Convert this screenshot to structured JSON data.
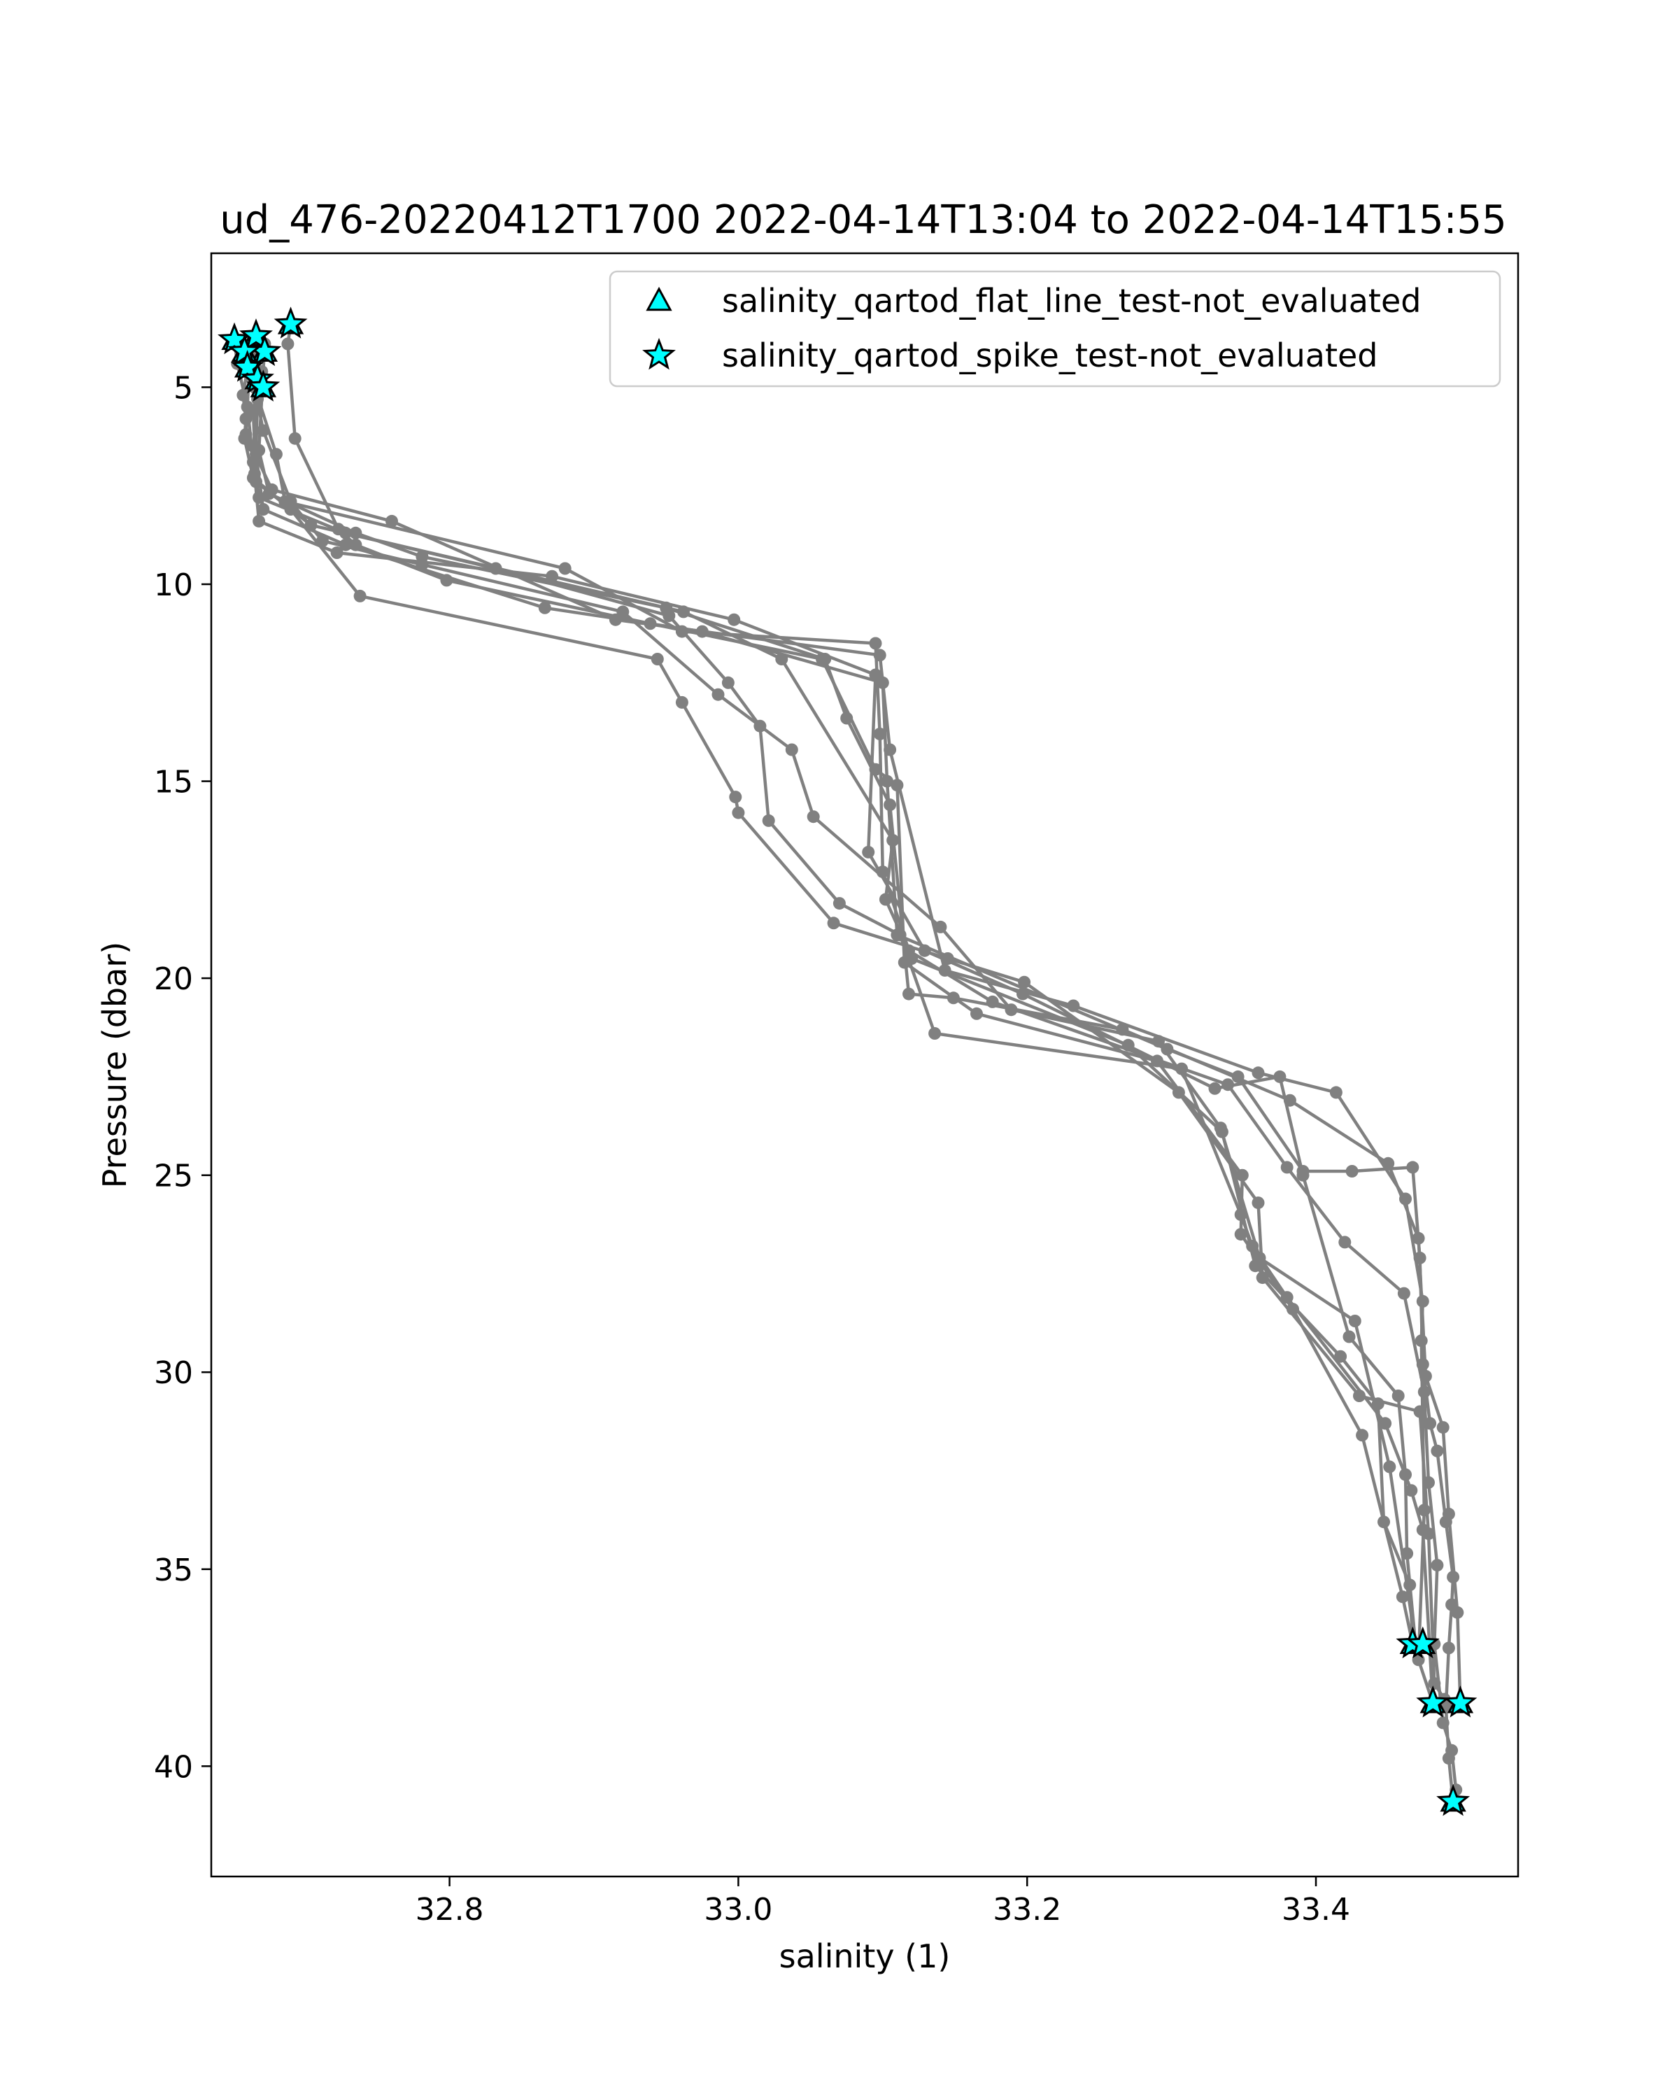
{
  "chart_data": {
    "type": "line",
    "title": "ud_476-20220412T1700 2022-04-14T13:04 to 2022-04-14T15:55",
    "xlabel": "salinity (1)",
    "ylabel": "Pressure (dbar)",
    "xlim": [
      32.635,
      33.54
    ],
    "ylim": [
      42.8,
      1.6
    ],
    "y_inverted": true,
    "grid": false,
    "legend_position": "top-right",
    "xticks": [
      "32.8",
      "33.0",
      "33.2",
      "33.4"
    ],
    "yticks": [
      "5",
      "10",
      "15",
      "20",
      "25",
      "30",
      "35",
      "40"
    ],
    "colors": {
      "profile": "#808080",
      "flag_fill": "#00ffff",
      "flag_edge": "#000000"
    },
    "legend": [
      {
        "label": "salinity_qartod_flat_line_test-not_evaluated",
        "marker": "triangle"
      },
      {
        "label": "salinity_qartod_spike_test-not_evaluated",
        "marker": "star"
      }
    ],
    "profiles": [
      {
        "points": [
          [
            32.69,
            3.4
          ],
          [
            32.688,
            3.9
          ],
          [
            32.693,
            6.3
          ],
          [
            32.723,
            8.6
          ],
          [
            32.735,
            9.0
          ],
          [
            32.798,
            9.9
          ],
          [
            32.939,
            11.0
          ],
          [
            33.058,
            11.9
          ],
          [
            33.095,
            14.7
          ],
          [
            33.11,
            15.1
          ],
          [
            33.115,
            19.6
          ],
          [
            33.165,
            20.9
          ],
          [
            33.29,
            22.1
          ],
          [
            33.349,
            25.0
          ],
          [
            33.348,
            26.5
          ],
          [
            33.384,
            28.4
          ],
          [
            33.432,
            31.6
          ],
          [
            33.46,
            35.7
          ],
          [
            33.467,
            36.9
          ]
        ]
      },
      {
        "points": [
          [
            33.467,
            36.9
          ],
          [
            33.465,
            35.4
          ],
          [
            33.447,
            33.8
          ],
          [
            33.443,
            30.8
          ],
          [
            33.417,
            29.6
          ],
          [
            33.358,
            27.3
          ],
          [
            33.335,
            23.9
          ],
          [
            33.27,
            21.7
          ],
          [
            33.12,
            19.5
          ],
          [
            33.1,
            17.3
          ],
          [
            33.098,
            13.8
          ],
          [
            33.095,
            11.5
          ],
          [
            32.961,
            11.2
          ],
          [
            32.88,
            9.6
          ],
          [
            32.686,
            7.9
          ],
          [
            32.68,
            6.7
          ],
          [
            32.665,
            5.0
          ]
        ]
      },
      {
        "points": [
          [
            32.665,
            5.0
          ],
          [
            32.671,
            6.1
          ],
          [
            32.69,
            7.9
          ],
          [
            32.712,
            8.9
          ],
          [
            32.781,
            9.5
          ],
          [
            32.92,
            10.7
          ],
          [
            32.986,
            12.8
          ],
          [
            33.037,
            14.2
          ],
          [
            33.052,
            15.9
          ],
          [
            33.14,
            18.7
          ],
          [
            33.189,
            20.8
          ],
          [
            33.291,
            21.6
          ],
          [
            33.334,
            23.8
          ],
          [
            33.361,
            27.1
          ],
          [
            33.427,
            28.7
          ],
          [
            33.451,
            32.4
          ],
          [
            33.469,
            36.9
          ]
        ]
      },
      {
        "points": [
          [
            33.469,
            36.9
          ],
          [
            33.463,
            34.6
          ],
          [
            33.462,
            32.6
          ],
          [
            33.457,
            30.6
          ],
          [
            33.423,
            29.1
          ],
          [
            33.391,
            25.0
          ],
          [
            33.375,
            22.5
          ],
          [
            33.33,
            22.8
          ],
          [
            33.197,
            20.4
          ],
          [
            33.129,
            19.3
          ],
          [
            33.09,
            16.8
          ],
          [
            33.095,
            12.3
          ],
          [
            32.997,
            10.9
          ],
          [
            32.871,
            9.8
          ],
          [
            32.722,
            9.2
          ],
          [
            32.668,
            8.4
          ],
          [
            32.665,
            7.2
          ],
          [
            32.664,
            6.5
          ],
          [
            32.67,
            4.6
          ]
        ]
      },
      {
        "points": [
          [
            32.67,
            4.6
          ],
          [
            32.664,
            5.6
          ],
          [
            32.666,
            7.4
          ],
          [
            32.704,
            8.5
          ],
          [
            32.832,
            9.6
          ],
          [
            32.952,
            10.8
          ],
          [
            32.993,
            12.5
          ],
          [
            33.015,
            13.6
          ],
          [
            33.021,
            16.0
          ],
          [
            33.07,
            18.1
          ],
          [
            33.112,
            18.9
          ],
          [
            33.136,
            21.4
          ],
          [
            33.307,
            22.3
          ],
          [
            33.348,
            26.0
          ],
          [
            33.356,
            26.8
          ],
          [
            33.38,
            28.1
          ],
          [
            33.448,
            31.3
          ],
          [
            33.466,
            33.0
          ],
          [
            33.474,
            34.0
          ],
          [
            33.481,
            38.4
          ]
        ]
      },
      {
        "points": [
          [
            33.481,
            38.4
          ],
          [
            33.471,
            37.3
          ],
          [
            33.475,
            33.5
          ],
          [
            33.473,
            29.2
          ],
          [
            33.474,
            28.2
          ],
          [
            33.462,
            25.6
          ],
          [
            33.414,
            22.9
          ],
          [
            33.36,
            22.4
          ],
          [
            33.232,
            20.7
          ],
          [
            33.143,
            19.8
          ],
          [
            33.105,
            14.2
          ],
          [
            33.098,
            11.8
          ],
          [
            32.915,
            10.9
          ],
          [
            32.76,
            8.4
          ],
          [
            32.677,
            7.6
          ],
          [
            32.659,
            6.2
          ],
          [
            32.662,
            4.1
          ]
        ]
      },
      {
        "points": [
          [
            32.662,
            4.1
          ],
          [
            32.657,
            5.2
          ],
          [
            32.659,
            5.8
          ],
          [
            32.658,
            6.3
          ],
          [
            32.664,
            7.3
          ],
          [
            32.69,
            8.1
          ],
          [
            32.738,
            10.3
          ],
          [
            32.944,
            11.9
          ],
          [
            32.961,
            13.0
          ],
          [
            32.998,
            15.4
          ],
          [
            33.0,
            15.8
          ],
          [
            33.066,
            18.6
          ],
          [
            33.145,
            19.5
          ],
          [
            33.198,
            20.1
          ],
          [
            33.305,
            22.9
          ],
          [
            33.36,
            25.7
          ],
          [
            33.363,
            27.6
          ],
          [
            33.43,
            30.6
          ],
          [
            33.472,
            31.0
          ],
          [
            33.478,
            34.1
          ],
          [
            33.482,
            37.9
          ],
          [
            33.489,
            38.3
          ],
          [
            33.5,
            38.4
          ]
        ]
      },
      {
        "points": [
          [
            33.5,
            38.4
          ],
          [
            33.498,
            36.1
          ],
          [
            33.492,
            33.6
          ],
          [
            33.488,
            31.4
          ],
          [
            33.476,
            30.1
          ],
          [
            33.471,
            26.6
          ],
          [
            33.45,
            24.7
          ],
          [
            33.382,
            23.1
          ],
          [
            33.266,
            21.3
          ],
          [
            33.149,
            20.5
          ],
          [
            33.118,
            20.4
          ],
          [
            33.105,
            15.6
          ],
          [
            33.075,
            13.4
          ],
          [
            33.06,
            11.9
          ],
          [
            32.95,
            10.6
          ],
          [
            32.781,
            9.3
          ],
          [
            32.735,
            8.7
          ],
          [
            32.675,
            7.7
          ],
          [
            32.668,
            6.6
          ],
          [
            32.672,
            3.9
          ],
          [
            32.66,
            4.3
          ],
          [
            32.655,
            4.0
          ],
          [
            32.651,
            3.8
          ]
        ]
      },
      {
        "points": [
          [
            32.651,
            3.8
          ],
          [
            32.653,
            4.4
          ],
          [
            32.66,
            5.5
          ],
          [
            32.664,
            6.9
          ],
          [
            32.668,
            7.8
          ],
          [
            32.728,
            8.7
          ],
          [
            32.962,
            10.7
          ],
          [
            33.03,
            11.9
          ],
          [
            33.107,
            16.5
          ],
          [
            33.102,
            18.0
          ],
          [
            33.118,
            19.3
          ],
          [
            33.176,
            20.6
          ],
          [
            33.339,
            22.7
          ],
          [
            33.38,
            24.8
          ],
          [
            33.42,
            26.7
          ],
          [
            33.461,
            28.0
          ],
          [
            33.475,
            30.5
          ],
          [
            33.478,
            32.8
          ],
          [
            33.484,
            34.9
          ],
          [
            33.482,
            36.9
          ],
          [
            33.488,
            38.9
          ],
          [
            33.494,
            39.6
          ],
          [
            33.497,
            40.6
          ],
          [
            33.495,
            40.9
          ]
        ]
      },
      {
        "points": [
          [
            33.495,
            40.9
          ],
          [
            33.492,
            39.8
          ],
          [
            33.49,
            38.5
          ],
          [
            33.492,
            37.0
          ],
          [
            33.494,
            35.9
          ],
          [
            33.495,
            35.2
          ],
          [
            33.49,
            33.8
          ],
          [
            33.484,
            32.0
          ],
          [
            33.479,
            31.3
          ],
          [
            33.474,
            29.8
          ],
          [
            33.472,
            27.1
          ],
          [
            33.467,
            24.8
          ],
          [
            33.425,
            24.9
          ],
          [
            33.391,
            24.9
          ],
          [
            33.346,
            22.5
          ],
          [
            33.297,
            21.8
          ],
          [
            33.11,
            18.9
          ],
          [
            33.103,
            15.0
          ],
          [
            33.1,
            12.5
          ],
          [
            32.975,
            11.2
          ],
          [
            32.866,
            10.6
          ],
          [
            32.728,
            9.0
          ],
          [
            32.671,
            8.1
          ],
          [
            32.666,
            6.7
          ],
          [
            32.667,
            5.3
          ],
          [
            32.668,
            4.1
          ]
        ]
      }
    ],
    "spike_flags": [
      [
        32.69,
        3.4
      ],
      [
        32.651,
        3.8
      ],
      [
        32.666,
        3.7
      ],
      [
        32.672,
        4.1
      ],
      [
        32.658,
        4.1
      ],
      [
        32.66,
        4.5
      ],
      [
        32.667,
        4.8
      ],
      [
        32.671,
        5.0
      ],
      [
        33.467,
        36.9
      ],
      [
        33.474,
        36.9
      ],
      [
        33.481,
        38.4
      ],
      [
        33.5,
        38.4
      ],
      [
        33.495,
        40.9
      ]
    ],
    "flat_line_flags": [
      [
        32.69,
        3.4
      ],
      [
        32.651,
        3.8
      ],
      [
        32.666,
        3.7
      ],
      [
        32.672,
        4.1
      ],
      [
        32.658,
        4.1
      ],
      [
        32.66,
        4.5
      ],
      [
        32.667,
        4.8
      ],
      [
        32.671,
        5.0
      ],
      [
        33.467,
        36.9
      ],
      [
        33.474,
        36.9
      ],
      [
        33.481,
        38.4
      ],
      [
        33.5,
        38.4
      ],
      [
        33.495,
        40.9
      ]
    ]
  }
}
